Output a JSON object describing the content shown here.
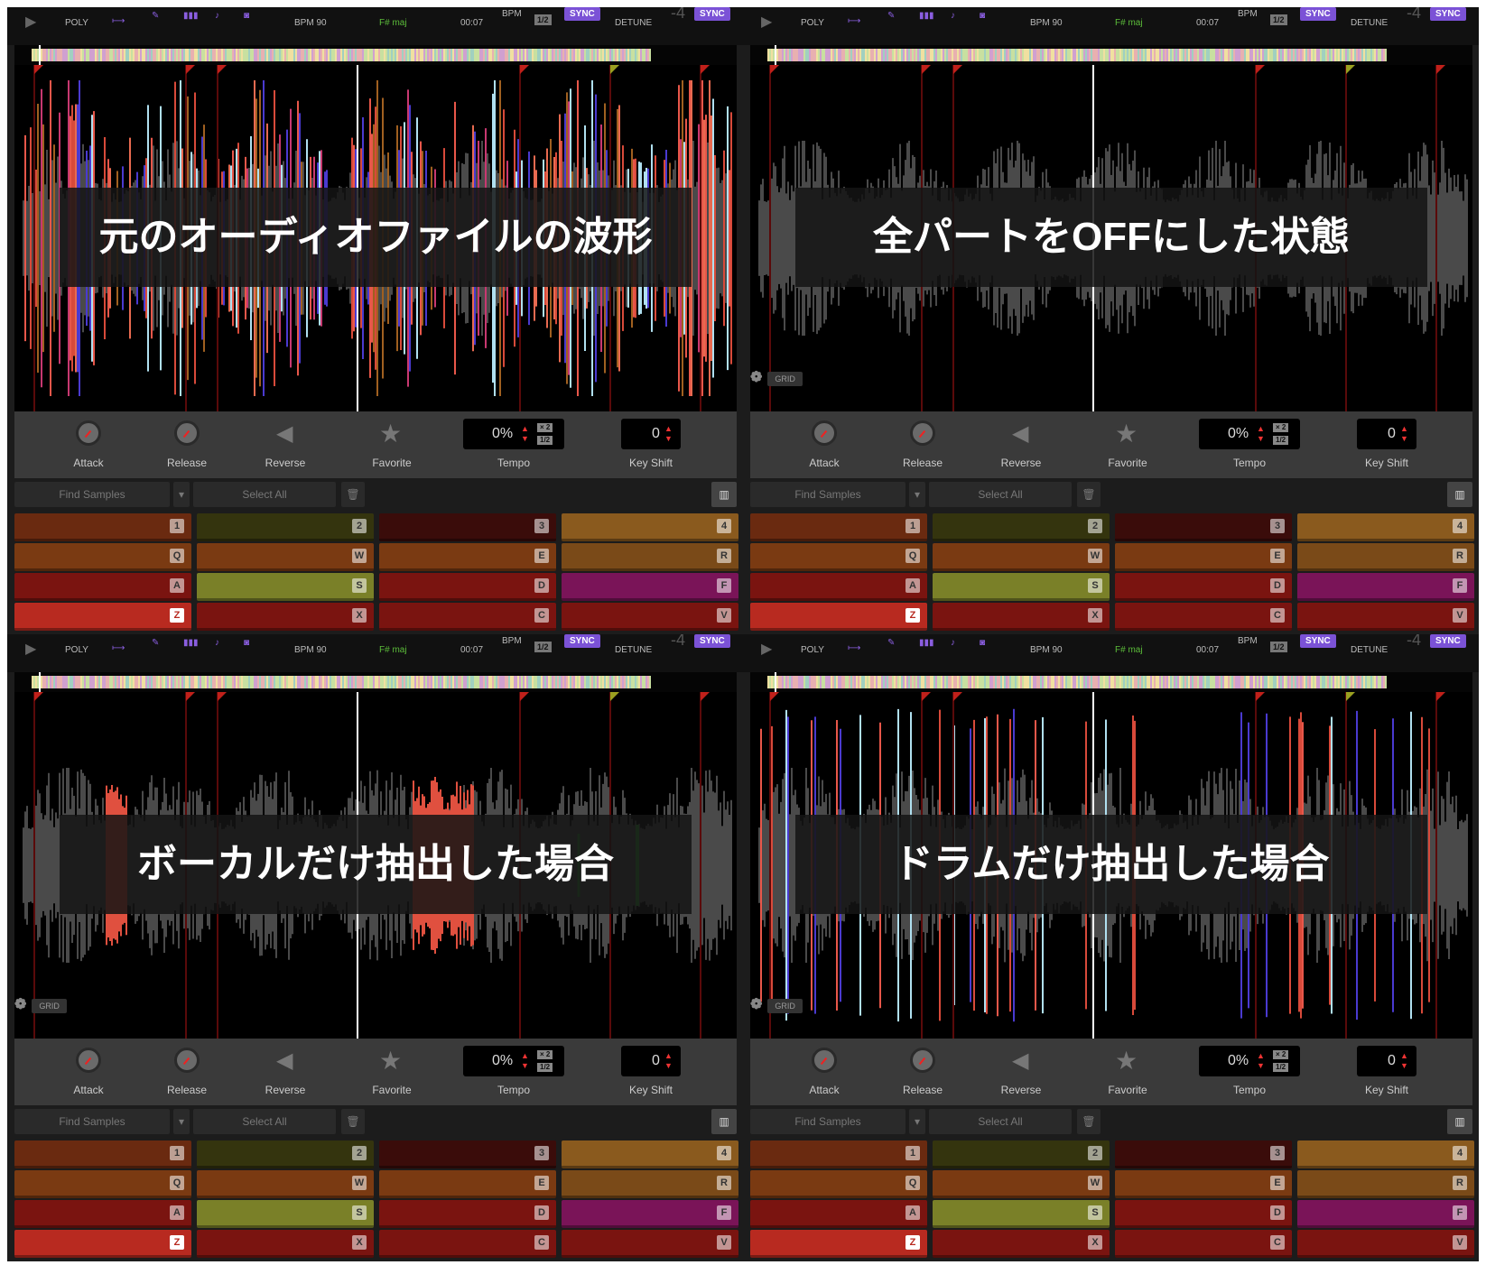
{
  "header": {
    "mode": "POLY",
    "bpm_label": "BPM 90",
    "key": "F# maj",
    "time": "00:07",
    "bpm_small": "BPM",
    "half": "1/2",
    "sync": "SYNC",
    "detune": "DETUNE",
    "detune_value": "-4",
    "sync2": "SYNC"
  },
  "controls": {
    "attack": "Attack",
    "release": "Release",
    "reverse": "Reverse",
    "favorite": "Favorite",
    "tempo_value": "0%",
    "tempo": "Tempo",
    "x2": "× 2",
    "half": "1/2",
    "keyshift_value": "0",
    "keyshift": "Key Shift"
  },
  "search": {
    "find": "Find Samples",
    "select_all": "Select All"
  },
  "grid_label": "GRID",
  "pads": [
    [
      {
        "key": "1",
        "color": "#6a2a10"
      },
      {
        "key": "2",
        "color": "#34340e"
      },
      {
        "key": "3",
        "color": "#3a0c0a"
      },
      {
        "key": "4",
        "color": "#8a5a1e"
      }
    ],
    [
      {
        "key": "Q",
        "color": "#7a3a12"
      },
      {
        "key": "W",
        "color": "#7a3a12"
      },
      {
        "key": "E",
        "color": "#7a3a12"
      },
      {
        "key": "R",
        "color": "#7a4a18"
      }
    ],
    [
      {
        "key": "A",
        "color": "#7a1410"
      },
      {
        "key": "S",
        "color": "#7a8028"
      },
      {
        "key": "D",
        "color": "#7a1410"
      },
      {
        "key": "F",
        "color": "#7a1458"
      }
    ],
    [
      {
        "key": "Z",
        "color": "#b82a20"
      },
      {
        "key": "X",
        "color": "#7a1410"
      },
      {
        "key": "C",
        "color": "#7a1410"
      },
      {
        "key": "V",
        "color": "#7a1410"
      }
    ]
  ],
  "panels": [
    {
      "caption": "元のオーディオファイルの波形",
      "waveform_mode": "full-color",
      "grid": false
    },
    {
      "caption": "全パートをOFFにした状態",
      "waveform_mode": "all-off-gray",
      "grid": true
    },
    {
      "caption": "ボーカルだけ抽出した場合",
      "waveform_mode": "vocal-only",
      "grid": true
    },
    {
      "caption": "ドラムだけ抽出した場合",
      "waveform_mode": "drum-only",
      "grid": true
    }
  ]
}
